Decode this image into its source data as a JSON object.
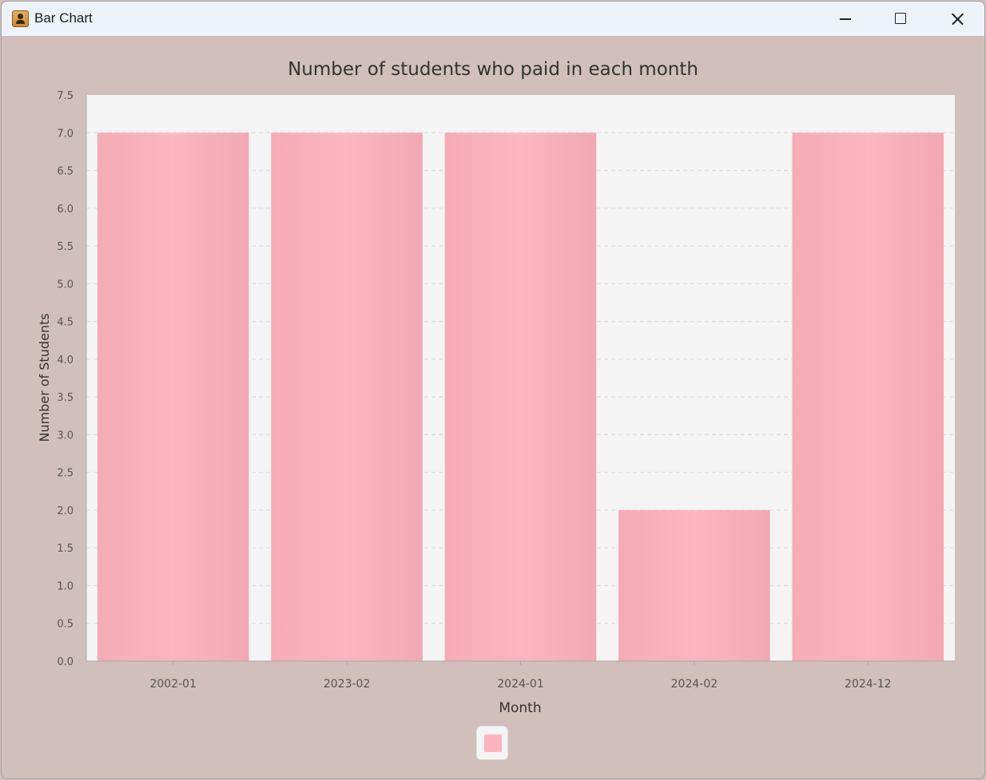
{
  "window": {
    "title": "Bar Chart",
    "minimize_icon": "minimize-icon",
    "maximize_icon": "maximize-icon",
    "close_icon": "close-icon"
  },
  "chart_data": {
    "type": "bar",
    "title": "Number of students who paid in each month",
    "xlabel": "Month",
    "ylabel": "Number of Students",
    "categories": [
      "2002-01",
      "2023-02",
      "2024-01",
      "2024-02",
      "2024-12"
    ],
    "series": [
      {
        "values": [
          7,
          7,
          7,
          2,
          7
        ]
      }
    ],
    "ylim": [
      0,
      7.5
    ],
    "ytick_labels": [
      "0.0",
      "0.5",
      "1.0",
      "1.5",
      "2.0",
      "2.5",
      "3.0",
      "3.5",
      "4.0",
      "4.5",
      "5.0",
      "5.5",
      "6.0",
      "6.5",
      "7.0",
      "7.5"
    ],
    "grid": true,
    "legend": "bottom-center",
    "colors": {
      "bar": "#fbb3bd",
      "plot_background": "#f4f4f4",
      "window_background": "#d1bfbc",
      "grid": "#dddddd"
    }
  }
}
